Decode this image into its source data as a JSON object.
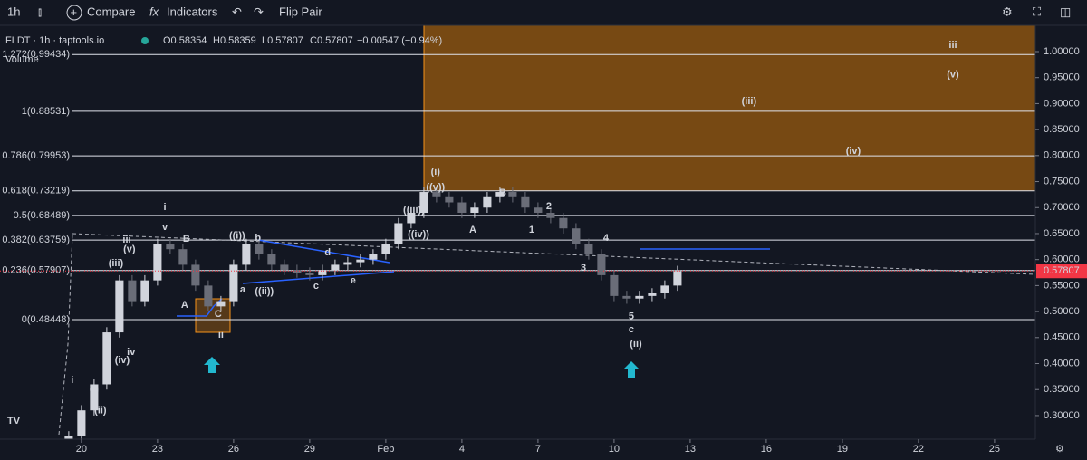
{
  "toolbar": {
    "interval": "1h",
    "compare": "Compare",
    "indicators": "Indicators",
    "flip": "Flip Pair"
  },
  "header": {
    "symbol": "FLDT · 1h · taptools.io",
    "open": "O0.58354",
    "high": "H0.58359",
    "low": "L0.57807",
    "close": "C0.57807",
    "change": "−0.00547 (−0.94%)",
    "volume": "Volume"
  },
  "chart_data": {
    "type": "candlestick",
    "x": [
      19.5,
      20,
      20.5,
      21,
      21.5,
      22,
      22.5,
      23,
      23.5,
      24,
      24.5,
      25,
      25.5,
      26,
      26.5,
      27,
      27.5,
      28,
      28.5,
      29,
      29.5,
      30,
      30.5,
      31,
      31.5,
      32,
      32.5,
      33,
      33.5,
      34,
      34.5,
      35,
      35.5,
      36,
      36.5,
      37,
      37.5,
      38,
      38.5,
      39,
      39.5,
      40,
      40.5,
      41,
      41.5,
      42,
      42.5,
      43,
      43.5
    ],
    "open": [
      0.25,
      0.26,
      0.31,
      0.36,
      0.46,
      0.56,
      0.52,
      0.56,
      0.63,
      0.62,
      0.59,
      0.55,
      0.51,
      0.52,
      0.59,
      0.63,
      0.61,
      0.59,
      0.58,
      0.575,
      0.57,
      0.58,
      0.59,
      0.595,
      0.6,
      0.61,
      0.63,
      0.67,
      0.69,
      0.73,
      0.72,
      0.71,
      0.69,
      0.7,
      0.72,
      0.73,
      0.72,
      0.7,
      0.69,
      0.68,
      0.66,
      0.63,
      0.61,
      0.57,
      0.53,
      0.525,
      0.53,
      0.535,
      0.55
    ],
    "high": [
      0.27,
      0.32,
      0.37,
      0.47,
      0.57,
      0.57,
      0.57,
      0.64,
      0.64,
      0.63,
      0.6,
      0.56,
      0.53,
      0.6,
      0.64,
      0.64,
      0.62,
      0.6,
      0.59,
      0.585,
      0.59,
      0.6,
      0.605,
      0.61,
      0.62,
      0.64,
      0.68,
      0.7,
      0.74,
      0.74,
      0.73,
      0.72,
      0.71,
      0.73,
      0.74,
      0.74,
      0.73,
      0.71,
      0.7,
      0.69,
      0.67,
      0.64,
      0.62,
      0.58,
      0.54,
      0.54,
      0.545,
      0.56,
      0.588
    ],
    "low": [
      0.24,
      0.25,
      0.3,
      0.35,
      0.45,
      0.51,
      0.51,
      0.55,
      0.61,
      0.58,
      0.54,
      0.5,
      0.5,
      0.51,
      0.58,
      0.6,
      0.58,
      0.57,
      0.565,
      0.56,
      0.56,
      0.57,
      0.58,
      0.585,
      0.59,
      0.6,
      0.62,
      0.66,
      0.68,
      0.71,
      0.7,
      0.68,
      0.68,
      0.69,
      0.71,
      0.71,
      0.69,
      0.68,
      0.67,
      0.65,
      0.62,
      0.6,
      0.56,
      0.52,
      0.515,
      0.515,
      0.52,
      0.525,
      0.54
    ],
    "close": [
      0.26,
      0.31,
      0.36,
      0.46,
      0.56,
      0.52,
      0.56,
      0.63,
      0.62,
      0.59,
      0.55,
      0.51,
      0.52,
      0.59,
      0.63,
      0.61,
      0.59,
      0.58,
      0.575,
      0.57,
      0.58,
      0.59,
      0.595,
      0.6,
      0.61,
      0.63,
      0.67,
      0.69,
      0.73,
      0.72,
      0.71,
      0.69,
      0.7,
      0.72,
      0.73,
      0.72,
      0.7,
      0.69,
      0.68,
      0.66,
      0.63,
      0.61,
      0.57,
      0.53,
      0.525,
      0.53,
      0.535,
      0.55,
      0.57807
    ],
    "up_color": "#d1d4dc",
    "down_color": "#6a6d78",
    "xlim": [
      16.79,
      57.61
    ],
    "xticks": [
      20,
      23,
      26,
      29,
      {
        "value": 32,
        "label": "Feb"
      },
      {
        "value": 35,
        "label": "4"
      },
      {
        "value": 38,
        "label": "7"
      },
      {
        "value": 41,
        "label": "10"
      },
      {
        "value": 44,
        "label": "13"
      },
      {
        "value": 47,
        "label": "16"
      },
      {
        "value": 50,
        "label": "19"
      },
      {
        "value": 53,
        "label": "22"
      },
      {
        "value": 56,
        "label": "25"
      }
    ],
    "ylim": [
      0.2546,
      1.0505
    ],
    "yticks": [
      {
        "value": 0.3,
        "label": "0.30000"
      },
      {
        "value": 0.35,
        "label": "0.35000"
      },
      {
        "value": 0.4,
        "label": "0.40000"
      },
      {
        "value": 0.45,
        "label": "0.45000"
      },
      {
        "value": 0.5,
        "label": "0.50000"
      },
      {
        "value": 0.55,
        "label": "0.55000"
      },
      {
        "value": 0.6,
        "label": "0.60000"
      },
      {
        "value": 0.65,
        "label": "0.65000"
      },
      {
        "value": 0.7,
        "label": "0.70000"
      },
      {
        "value": 0.75,
        "label": "0.75000"
      },
      {
        "value": 0.8,
        "label": "0.80000"
      },
      {
        "value": 0.85,
        "label": "0.85000"
      },
      {
        "value": 0.9,
        "label": "0.90000"
      },
      {
        "value": 0.95,
        "label": "0.95000"
      },
      {
        "value": 1,
        "label": "1.00000"
      }
    ],
    "last_price": {
      "value": 0.57807,
      "label": "0.57807",
      "color": "#f23645"
    },
    "fib_levels": [
      {
        "value": 0.99434,
        "label": "1.272(0.99434)"
      },
      {
        "value": 0.88531,
        "label": "1(0.88531)"
      },
      {
        "value": 0.79953,
        "label": "0.786(0.79953)"
      },
      {
        "value": 0.73219,
        "label": "0.618(0.73219)"
      },
      {
        "value": 0.68489,
        "label": "0.5(0.68489)"
      },
      {
        "value": 0.63759,
        "label": "0.382(0.63759)"
      },
      {
        "value": 0.57907,
        "label": "0.236(0.57907)"
      },
      {
        "value": 0.48448,
        "label": "0(0.48448)"
      }
    ],
    "annotations": [
      {
        "text": "iii",
        "x": 54.36,
        "y": 1.012,
        "color": "#ffffff"
      },
      {
        "text": "(v)",
        "x": 54.36,
        "y": 0.955,
        "color": "#ffffff"
      },
      {
        "text": "(iii)",
        "x": 46.32,
        "y": 0.904,
        "color": "#ffffff"
      },
      {
        "text": "(iv)",
        "x": 50.43,
        "y": 0.808,
        "color": "#ffffff"
      },
      {
        "text": "(i)",
        "x": 33.96,
        "y": 0.768,
        "color": "#ffffff"
      },
      {
        "text": "((v))",
        "x": 33.96,
        "y": 0.739,
        "color": "#f5d142"
      },
      {
        "text": "B",
        "x": 36.61,
        "y": 0.728,
        "color": "#ffffff"
      },
      {
        "text": "((iii))",
        "x": 33.11,
        "y": 0.695,
        "color": "#f5d142"
      },
      {
        "text": "((iv))",
        "x": 33.29,
        "y": 0.648,
        "color": "#f5d142"
      },
      {
        "text": "A",
        "x": 35.43,
        "y": 0.657,
        "color": "#ffffff"
      },
      {
        "text": "2",
        "x": 38.43,
        "y": 0.702,
        "color": "#f5d142"
      },
      {
        "text": "1",
        "x": 37.75,
        "y": 0.657,
        "color": "#f5d142"
      },
      {
        "text": "4",
        "x": 40.68,
        "y": 0.641,
        "color": "#f5d142"
      },
      {
        "text": "3",
        "x": 39.79,
        "y": 0.584,
        "color": "#f5d142"
      },
      {
        "text": "5",
        "x": 41.68,
        "y": 0.49,
        "color": "#f5d142"
      },
      {
        "text": "c",
        "x": 41.68,
        "y": 0.465,
        "color": "#ffffff"
      },
      {
        "text": "(ii)",
        "x": 41.86,
        "y": 0.437,
        "color": "#ffffff"
      },
      {
        "text": "i",
        "x": 23.29,
        "y": 0.7,
        "color": "#ffffff"
      },
      {
        "text": "v",
        "x": 23.29,
        "y": 0.662,
        "color": "#ffffff"
      },
      {
        "text": "B",
        "x": 24.14,
        "y": 0.639,
        "color": "#ffffff"
      },
      {
        "text": "((i))",
        "x": 26.14,
        "y": 0.645,
        "color": "#f5d142"
      },
      {
        "text": "b",
        "x": 26.96,
        "y": 0.641,
        "color": "#ffffff"
      },
      {
        "text": "d",
        "x": 29.71,
        "y": 0.613,
        "color": "#ffffff"
      },
      {
        "text": "c",
        "x": 29.25,
        "y": 0.549,
        "color": "#ffffff"
      },
      {
        "text": "e",
        "x": 30.71,
        "y": 0.559,
        "color": "#ffffff"
      },
      {
        "text": "a",
        "x": 26.36,
        "y": 0.542,
        "color": "#ffffff"
      },
      {
        "text": "((ii))",
        "x": 27.21,
        "y": 0.538,
        "color": "#f5d142"
      },
      {
        "text": "A",
        "x": 24.07,
        "y": 0.512,
        "color": "#ffffff"
      },
      {
        "text": "C",
        "x": 25.39,
        "y": 0.495,
        "color": "#ffffff"
      },
      {
        "text": "ii",
        "x": 25.5,
        "y": 0.455,
        "color": "#ffffff"
      },
      {
        "text": "iii",
        "x": 21.79,
        "y": 0.638,
        "color": "#ffffff"
      },
      {
        "text": "(v)",
        "x": 21.89,
        "y": 0.619,
        "color": "#ffffff"
      },
      {
        "text": "(iii)",
        "x": 21.36,
        "y": 0.592,
        "color": "#ffffff"
      },
      {
        "text": "iv",
        "x": 21.96,
        "y": 0.422,
        "color": "#ffffff"
      },
      {
        "text": "(iv)",
        "x": 21.61,
        "y": 0.406,
        "color": "#ffffff"
      },
      {
        "text": "i",
        "x": 19.64,
        "y": 0.368,
        "color": "#ffffff"
      },
      {
        "text": "(i)",
        "x": 20.5,
        "y": 0.35,
        "color": "#ffffff"
      },
      {
        "text": "(ii)",
        "x": 20.75,
        "y": 0.309,
        "color": "#ffffff"
      }
    ]
  }
}
